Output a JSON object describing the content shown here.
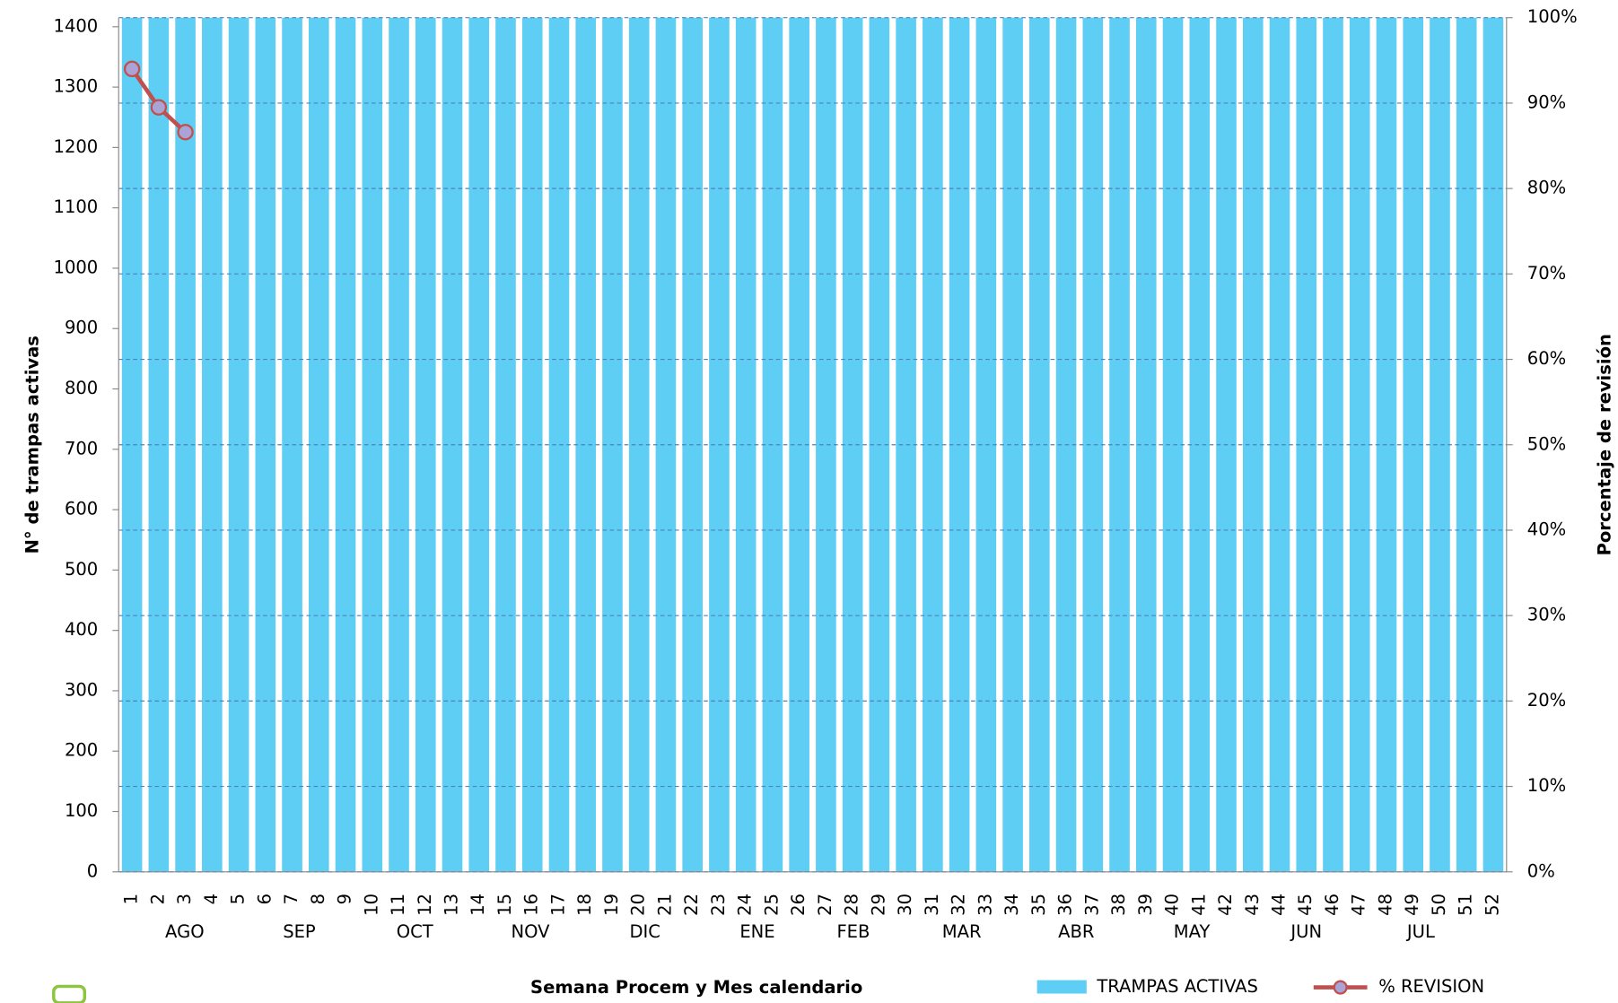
{
  "chart_data": {
    "type": "bar",
    "x_label": "Semana Procem y Mes calendario",
    "y_label": "N° de trampas activas",
    "y2_label": "Porcentaje de revisión",
    "categories": [
      "1",
      "2",
      "3",
      "4",
      "5",
      "6",
      "7",
      "8",
      "9",
      "10",
      "11",
      "12",
      "13",
      "14",
      "15",
      "16",
      "17",
      "18",
      "19",
      "20",
      "21",
      "22",
      "23",
      "24",
      "25",
      "26",
      "27",
      "28",
      "29",
      "30",
      "31",
      "32",
      "33",
      "34",
      "35",
      "36",
      "37",
      "38",
      "39",
      "40",
      "41",
      "42",
      "43",
      "44",
      "45",
      "46",
      "47",
      "48",
      "49",
      "50",
      "51",
      "52"
    ],
    "months": [
      "AGO",
      "SEP",
      "OCT",
      "NOV",
      "DIC",
      "ENE",
      "FEB",
      "MAR",
      "ABR",
      "MAY",
      "JUN",
      "JUL"
    ],
    "series": [
      {
        "name": "TRAMPAS ACTIVAS",
        "type": "bar",
        "color": "#5ecef4",
        "values": [
          1415,
          1415,
          1415,
          1415,
          1415,
          1415,
          1415,
          1415,
          1415,
          1415,
          1415,
          1415,
          1415,
          1415,
          1415,
          1415,
          1415,
          1415,
          1415,
          1415,
          1415,
          1415,
          1415,
          1415,
          1415,
          1415,
          1415,
          1415,
          1415,
          1415,
          1415,
          1415,
          1415,
          1415,
          1415,
          1415,
          1415,
          1415,
          1415,
          1415,
          1415,
          1415,
          1415,
          1415,
          1415,
          1415,
          1415,
          1415,
          1415,
          1415,
          1415,
          1415
        ]
      },
      {
        "name": "% REVISION",
        "type": "line",
        "axis": "y2",
        "color": "#c0504d",
        "marker_color": "#a9a3d6",
        "values": [
          94,
          89.5,
          86.6,
          null,
          null,
          null,
          null,
          null,
          null,
          null,
          null,
          null,
          null,
          null,
          null,
          null,
          null,
          null,
          null,
          null,
          null,
          null,
          null,
          null,
          null,
          null,
          null,
          null,
          null,
          null,
          null,
          null,
          null,
          null,
          null,
          null,
          null,
          null,
          null,
          null,
          null,
          null,
          null,
          null,
          null,
          null,
          null,
          null,
          null,
          null,
          null,
          null
        ]
      }
    ],
    "ylim": [
      0,
      1415
    ],
    "yticks": [
      0,
      100,
      200,
      300,
      400,
      500,
      600,
      700,
      800,
      900,
      1000,
      1100,
      1200,
      1300,
      1400
    ],
    "y2lim": [
      0,
      100
    ],
    "y2ticks": [
      {
        "value": 0,
        "label": "0%"
      },
      {
        "value": 10,
        "label": "10%"
      },
      {
        "value": 20,
        "label": "20%"
      },
      {
        "value": 30,
        "label": "30%"
      },
      {
        "value": 40,
        "label": "40%"
      },
      {
        "value": 50,
        "label": "50%"
      },
      {
        "value": 60,
        "label": "60%"
      },
      {
        "value": 70,
        "label": "70%"
      },
      {
        "value": 80,
        "label": "80%"
      },
      {
        "value": 90,
        "label": "90%"
      },
      {
        "value": 100,
        "label": "100%"
      }
    ],
    "grid": true,
    "grid_axis": "y2"
  }
}
